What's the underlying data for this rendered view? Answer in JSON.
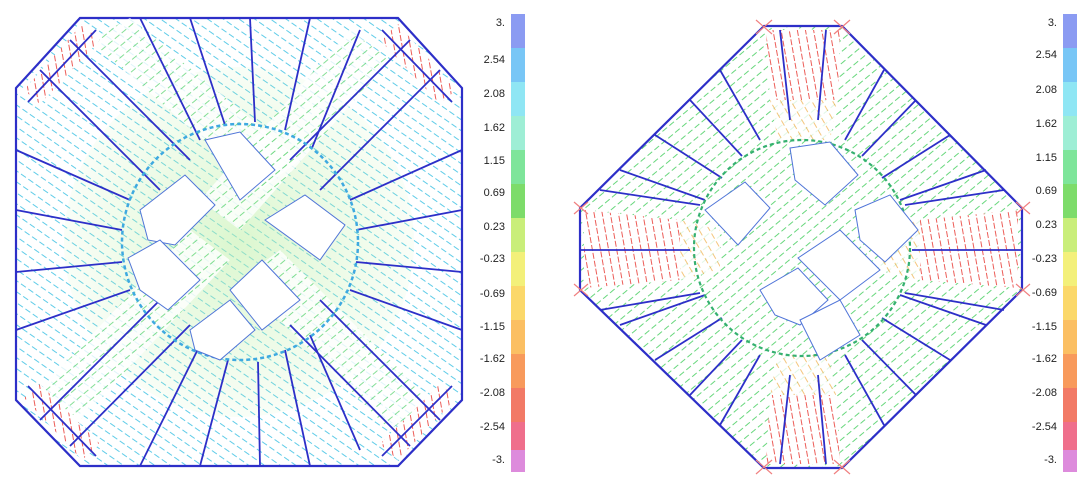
{
  "panels": [
    {
      "name": "left",
      "colorbar": {
        "labels": [
          "3.",
          "2.54",
          "2.08",
          "1.62",
          "1.15",
          "0.69",
          "0.23",
          "-0.23",
          "-0.69",
          "-1.15",
          "-1.62",
          "-2.08",
          "-2.54",
          "-3."
        ],
        "colors": [
          "#8b9bf2",
          "#78c6f6",
          "#8fe6f4",
          "#9eeed5",
          "#7ee59a",
          "#7ddc6a",
          "#c9ee7a",
          "#f3f07a",
          "#fbd86a",
          "#fbbf63",
          "#f89a5c",
          "#f27a66",
          "#ef6f8c",
          "#dd8bdc"
        ]
      }
    },
    {
      "name": "right",
      "colorbar": {
        "labels": [
          "3.",
          "2.54",
          "2.08",
          "1.62",
          "1.15",
          "0.69",
          "0.23",
          "-0.23",
          "-0.69",
          "-1.15",
          "-1.62",
          "-2.08",
          "-2.54",
          "-3."
        ],
        "colors": [
          "#8b9bf2",
          "#78c6f6",
          "#8fe6f4",
          "#9eeed5",
          "#7ee59a",
          "#7ddc6a",
          "#c9ee7a",
          "#f3f07a",
          "#fbd86a",
          "#fbbf63",
          "#f89a5c",
          "#f27a66",
          "#ef6f8c",
          "#dd8bdc"
        ]
      }
    }
  ],
  "colors": {
    "outline": "#2d2fc8",
    "field_high": "#8fe6f4",
    "field_mid": "#8ee08a",
    "field_low": "#f2705e",
    "hole": "#ffffff"
  }
}
